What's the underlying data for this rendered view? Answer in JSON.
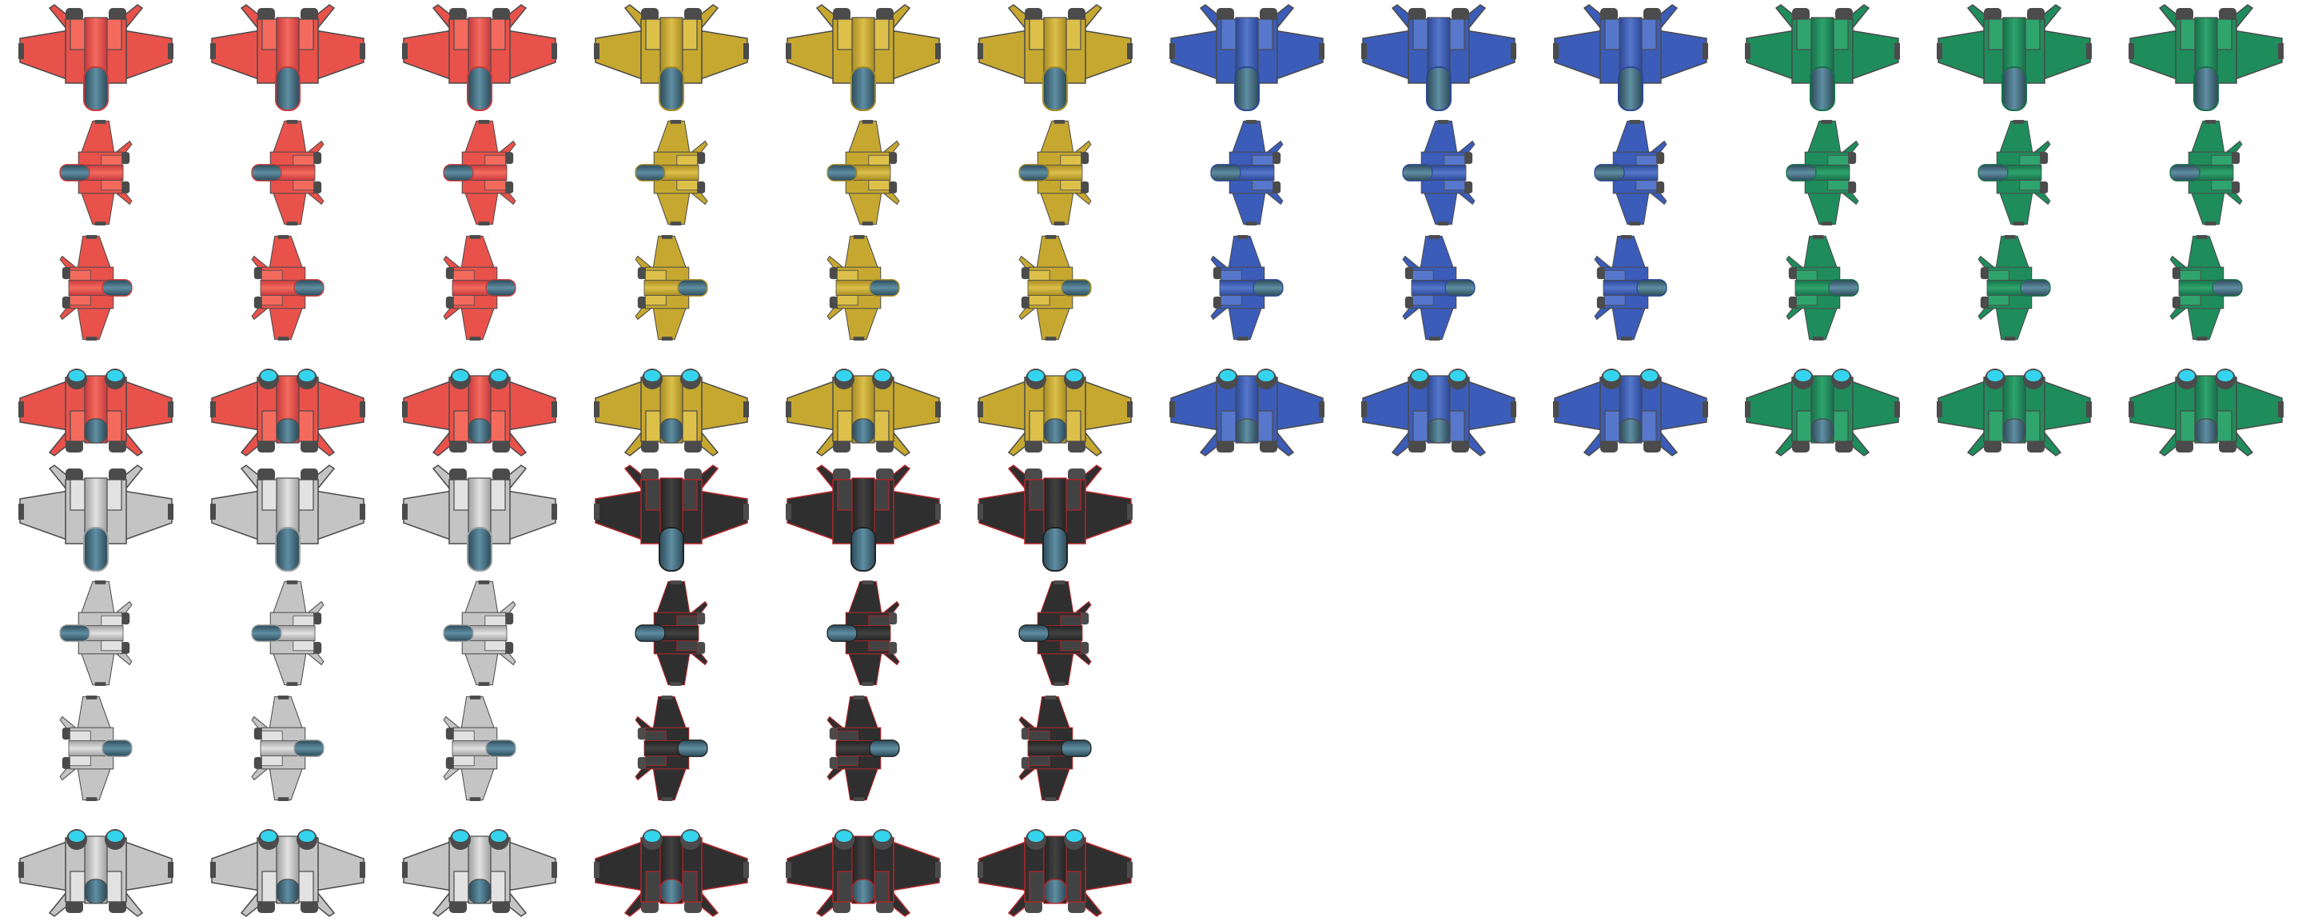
{
  "sprite_sheet": {
    "columns": 12,
    "rows": 8,
    "frames_per_variant": 3,
    "directions": [
      "down",
      "left",
      "right",
      "up"
    ],
    "palettes": {
      "red": {
        "main": "#e8524b",
        "light": "#f46b5e",
        "shade": "#c9393c",
        "edge": "#4a4a4a"
      },
      "yellow": {
        "main": "#c6a830",
        "light": "#dcc04a",
        "shade": "#a88c22",
        "edge": "#4a4a4a"
      },
      "blue": {
        "main": "#3b5cb8",
        "light": "#5677cc",
        "shade": "#2c4896",
        "edge": "#4a4a4a"
      },
      "green": {
        "main": "#1e8c5b",
        "light": "#2fa46d",
        "shade": "#17704a",
        "edge": "#4a4a4a"
      },
      "gray": {
        "main": "#c4c4c4",
        "light": "#e2e2e2",
        "shade": "#a0a0a0",
        "edge": "#4a4a4a"
      },
      "black": {
        "main": "#2f2f2f",
        "light": "#424242",
        "shade": "#232323",
        "edge": "#b3262a"
      }
    },
    "cockpit_color": "#3f6a7c",
    "engine_color": "#4b4b4b",
    "thruster_glow_color": "#35d4ee",
    "blocks": [
      {
        "color": "red",
        "row_start": 0,
        "col_start": 0
      },
      {
        "color": "yellow",
        "row_start": 0,
        "col_start": 3
      },
      {
        "color": "blue",
        "row_start": 0,
        "col_start": 6
      },
      {
        "color": "green",
        "row_start": 0,
        "col_start": 9
      },
      {
        "color": "gray",
        "row_start": 4,
        "col_start": 0
      },
      {
        "color": "black",
        "row_start": 4,
        "col_start": 3
      }
    ]
  }
}
